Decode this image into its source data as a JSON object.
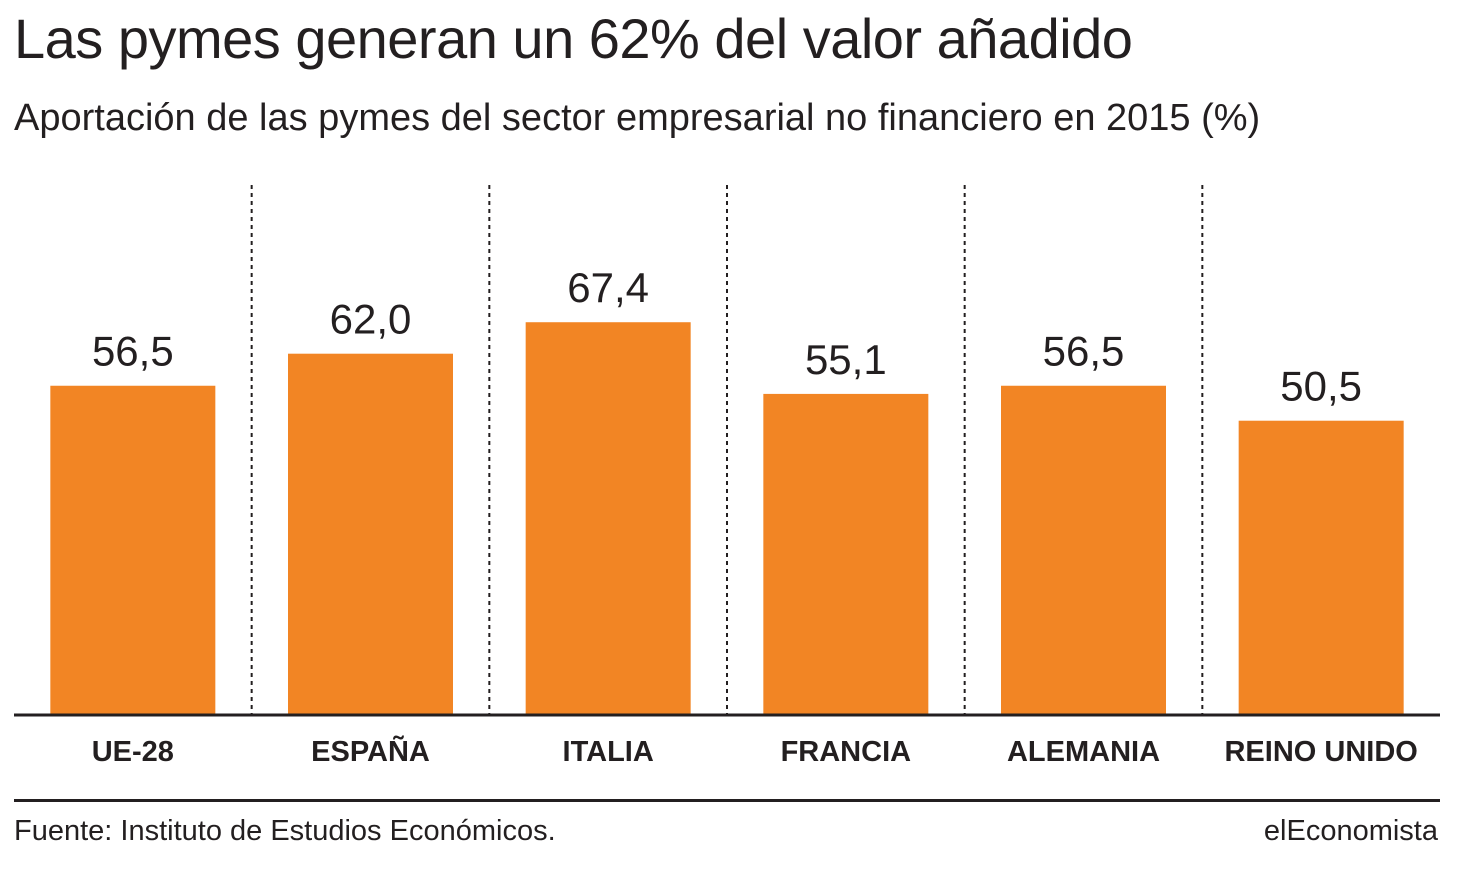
{
  "title": "Las pymes generan un 62% del valor añadido",
  "subtitle": "Aportación de las pymes del sector empresarial no financiero en 2015 (%)",
  "source": "Fuente: Instituto de Estudios Económicos.",
  "brand": "elEconomista",
  "colors": {
    "bar": "#f28524",
    "text": "#231f20",
    "axis": "#231f20",
    "divider": "#231f20"
  },
  "chart_data": {
    "type": "bar",
    "categories": [
      "UE-28",
      "ESPAÑA",
      "ITALIA",
      "FRANCIA",
      "ALEMANIA",
      "REINO UNIDO"
    ],
    "values": [
      56.5,
      62.0,
      67.4,
      55.1,
      56.5,
      50.5
    ],
    "value_labels": [
      "56,5",
      "62,0",
      "67,4",
      "55,1",
      "56,5",
      "50,5"
    ],
    "title": "Las pymes generan un 62% del valor añadido",
    "xlabel": "",
    "ylabel": "",
    "ylim": [
      0,
      85.8
    ],
    "grid": false,
    "legend": "none",
    "category_dividers": "dotted"
  }
}
